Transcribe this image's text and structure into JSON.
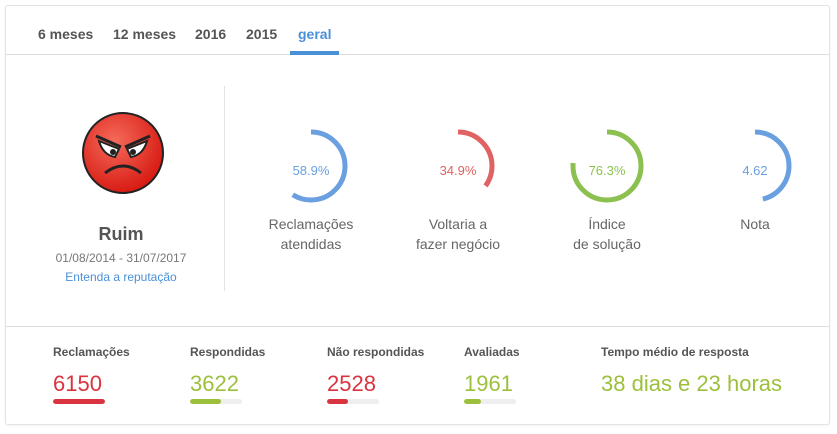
{
  "tabs": [
    {
      "label": "6 meses"
    },
    {
      "label": "12 meses"
    },
    {
      "label": "2016"
    },
    {
      "label": "2015"
    },
    {
      "label": "geral",
      "active": true
    }
  ],
  "reputation": {
    "icon": "angry-face-icon",
    "status": "Ruim",
    "period": "01/08/2014 - 31/07/2017",
    "link": "Entenda a reputação"
  },
  "gauges": [
    {
      "value": "58.9%",
      "percent": 58.9,
      "label1": "Reclamações",
      "label2": "atendidas",
      "color": "#6a9fe0"
    },
    {
      "value": "34.9%",
      "percent": 34.9,
      "label1": "Voltaria a",
      "label2": "fazer negócio",
      "color": "#e06363"
    },
    {
      "value": "76.3%",
      "percent": 76.3,
      "label1": "Índice",
      "label2": "de solução",
      "color": "#8cc152"
    },
    {
      "value": "4.62",
      "percent": 46.2,
      "label1": "Nota",
      "label2": "",
      "color": "#6a9fe0"
    }
  ],
  "stats": [
    {
      "label": "Reclamações",
      "value": "6150",
      "color": "#d9333f",
      "fill": 100
    },
    {
      "label": "Respondidas",
      "value": "3622",
      "color": "#9cc03c",
      "fill": 59
    },
    {
      "label": "Não respondidas",
      "value": "2528",
      "color": "#d9333f",
      "fill": 41
    },
    {
      "label": "Avaliadas",
      "value": "1961",
      "color": "#9cc03c",
      "fill": 32
    },
    {
      "label": "Tempo médio de resposta",
      "value": "38 dias e 23 horas",
      "color": "#9cc03c"
    }
  ]
}
